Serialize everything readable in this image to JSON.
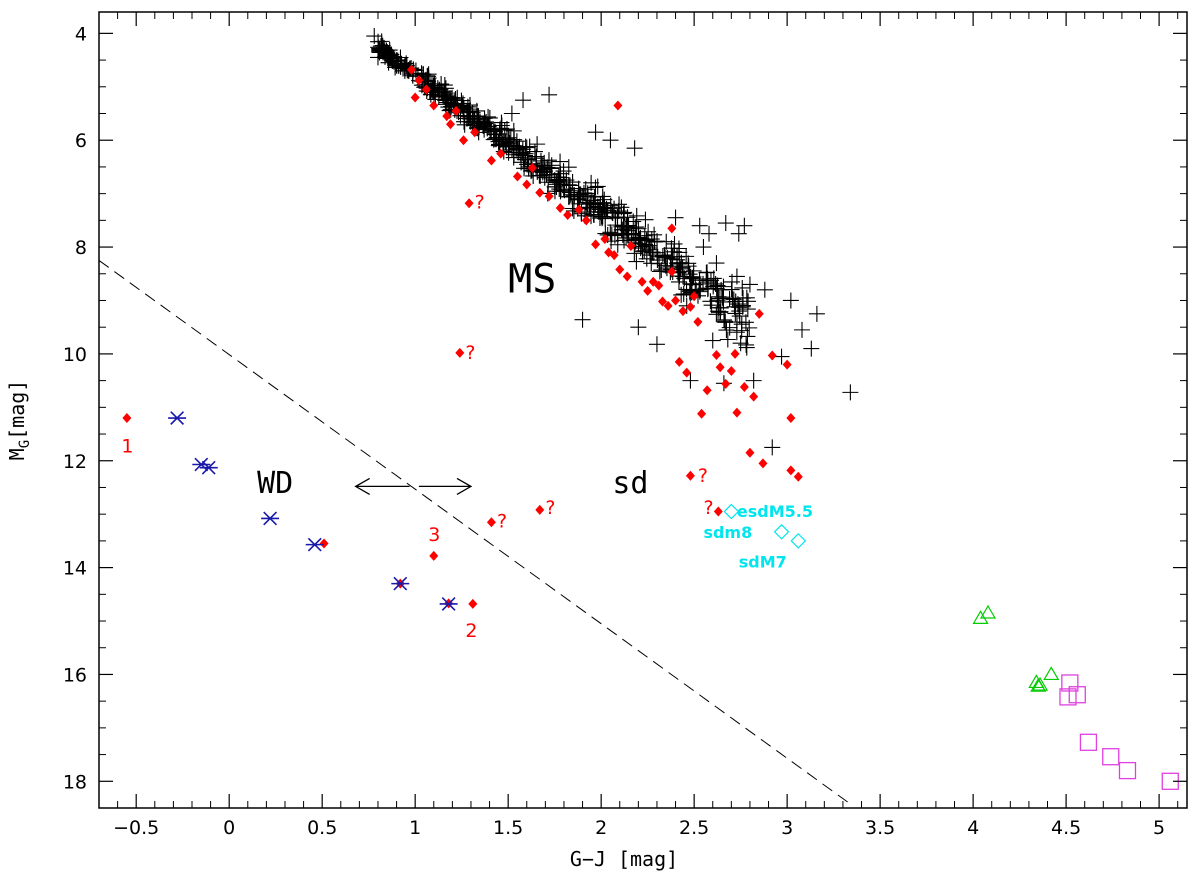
{
  "chart_data": {
    "type": "scatter",
    "title": "",
    "xlabel": "G−J [mag]",
    "ylabel_main": "M",
    "ylabel_sub": "G",
    "ylabel_unit": "[mag]",
    "xlim": [
      -0.7,
      5.15
    ],
    "ylim": [
      18.5,
      3.6
    ],
    "y_inverted": true,
    "grid": false,
    "x_ticks": [
      -0.5,
      0,
      0.5,
      1,
      1.5,
      2,
      2.5,
      3,
      3.5,
      4,
      4.5,
      5
    ],
    "x_tick_labels": [
      "−0.5",
      "0",
      "0.5",
      "1",
      "1.5",
      "2",
      "2.5",
      "3",
      "3.5",
      "4",
      "4.5",
      "5"
    ],
    "y_ticks": [
      4,
      6,
      8,
      10,
      12,
      14,
      16,
      18
    ],
    "y_tick_labels": [
      "4",
      "6",
      "8",
      "10",
      "12",
      "14",
      "16",
      "18"
    ],
    "colors": {
      "ms": "#000000",
      "red": "#ff0000",
      "wd": "#1a1aaa",
      "cyan": "#00e5ee",
      "green": "#00cc00",
      "magenta": "#e040e0"
    },
    "divider_line": {
      "x": [
        -0.7,
        3.33
      ],
      "y": [
        8.25,
        18.4
      ],
      "style": "dashed"
    },
    "arrows": {
      "y": 12.48,
      "left": [
        0.68,
        0.97
      ],
      "right": [
        1.02,
        1.3
      ]
    },
    "series": [
      {
        "marker": "plus",
        "color": "#000000",
        "ms_band_generated": {
          "x_start": 0.8,
          "x_end": 2.8,
          "count": 600,
          "slope": 2.58,
          "intercept": 2.2,
          "seed": 7
        },
        "points": [
          [
            0.78,
            4.05
          ],
          [
            0.82,
            4.15
          ],
          [
            0.85,
            4.35
          ],
          [
            0.8,
            4.45
          ],
          [
            2.05,
            6.0
          ],
          [
            2.18,
            6.15
          ],
          [
            1.97,
            5.85
          ],
          [
            1.58,
            5.25
          ],
          [
            1.72,
            5.15
          ],
          [
            1.52,
            5.5
          ],
          [
            2.4,
            7.45
          ],
          [
            2.53,
            7.6
          ],
          [
            2.58,
            7.75
          ],
          [
            2.67,
            7.55
          ],
          [
            2.74,
            7.75
          ],
          [
            2.77,
            7.6
          ],
          [
            2.73,
            8.55
          ],
          [
            2.8,
            8.7
          ],
          [
            2.88,
            8.8
          ],
          [
            3.02,
            9.0
          ],
          [
            3.08,
            9.55
          ],
          [
            3.16,
            9.25
          ],
          [
            3.13,
            9.9
          ],
          [
            2.97,
            10.05
          ],
          [
            2.82,
            10.5
          ],
          [
            2.66,
            10.55
          ],
          [
            2.92,
            11.75
          ],
          [
            3.34,
            10.72
          ],
          [
            1.9,
            9.36
          ],
          [
            2.2,
            9.5
          ],
          [
            2.3,
            9.82
          ],
          [
            2.48,
            10.5
          ],
          [
            2.6,
            9.75
          ],
          [
            2.75,
            9.8
          ],
          [
            2.55,
            8.0
          ],
          [
            2.62,
            8.3
          ],
          [
            2.35,
            7.9
          ],
          [
            2.42,
            8.1
          ],
          [
            2.46,
            9.1
          ]
        ]
      },
      {
        "marker": "diamond-filled",
        "color": "#ff0000",
        "points": [
          [
            -0.55,
            11.2
          ],
          [
            0.51,
            13.55
          ],
          [
            0.92,
            14.3
          ],
          [
            1.18,
            14.67
          ],
          [
            1.1,
            13.78
          ],
          [
            1.31,
            14.68
          ],
          [
            1.41,
            13.15
          ],
          [
            1.67,
            12.92
          ],
          [
            1.29,
            7.18
          ],
          [
            1.24,
            9.98
          ],
          [
            2.09,
            5.35
          ],
          [
            2.48,
            12.28
          ],
          [
            2.63,
            12.95
          ],
          [
            0.98,
            4.68
          ],
          [
            1.02,
            4.88
          ],
          [
            1.06,
            5.05
          ],
          [
            1.0,
            5.2
          ],
          [
            1.1,
            5.35
          ],
          [
            1.17,
            5.55
          ],
          [
            1.19,
            5.7
          ],
          [
            1.22,
            5.45
          ],
          [
            1.26,
            6.0
          ],
          [
            1.32,
            5.85
          ],
          [
            1.41,
            6.38
          ],
          [
            1.46,
            6.25
          ],
          [
            1.55,
            6.68
          ],
          [
            1.6,
            6.83
          ],
          [
            1.63,
            6.52
          ],
          [
            1.67,
            6.98
          ],
          [
            1.72,
            7.05
          ],
          [
            1.78,
            7.27
          ],
          [
            1.82,
            7.4
          ],
          [
            1.88,
            7.3
          ],
          [
            1.92,
            7.5
          ],
          [
            1.97,
            7.95
          ],
          [
            2.02,
            7.85
          ],
          [
            2.04,
            8.1
          ],
          [
            2.07,
            8.15
          ],
          [
            2.1,
            8.42
          ],
          [
            2.14,
            8.55
          ],
          [
            2.16,
            7.98
          ],
          [
            2.22,
            8.65
          ],
          [
            2.25,
            8.82
          ],
          [
            2.28,
            8.65
          ],
          [
            2.31,
            8.72
          ],
          [
            2.33,
            9.02
          ],
          [
            2.36,
            9.1
          ],
          [
            2.38,
            7.65
          ],
          [
            2.38,
            8.46
          ],
          [
            2.4,
            9.0
          ],
          [
            2.42,
            10.15
          ],
          [
            2.44,
            9.2
          ],
          [
            2.46,
            10.35
          ],
          [
            2.48,
            9.12
          ],
          [
            2.5,
            8.92
          ],
          [
            2.52,
            9.4
          ],
          [
            2.54,
            11.12
          ],
          [
            2.57,
            10.68
          ],
          [
            2.62,
            10.02
          ],
          [
            2.64,
            10.25
          ],
          [
            2.67,
            10.56
          ],
          [
            2.7,
            10.32
          ],
          [
            2.72,
            10.0
          ],
          [
            2.73,
            11.1
          ],
          [
            2.77,
            10.62
          ],
          [
            2.8,
            11.85
          ],
          [
            2.82,
            10.8
          ],
          [
            2.85,
            9.25
          ],
          [
            2.87,
            12.05
          ],
          [
            2.92,
            10.03
          ],
          [
            3.0,
            10.2
          ],
          [
            3.02,
            11.2
          ],
          [
            3.02,
            12.18
          ],
          [
            3.06,
            12.3
          ]
        ]
      },
      {
        "marker": "asterisk",
        "color": "#1a1aaa",
        "points": [
          [
            -0.28,
            11.2
          ],
          [
            -0.15,
            12.07
          ],
          [
            -0.11,
            12.13
          ],
          [
            0.22,
            13.08
          ],
          [
            0.46,
            13.57
          ],
          [
            0.92,
            14.3
          ],
          [
            1.18,
            14.68
          ]
        ]
      },
      {
        "marker": "diamond-open",
        "color": "#00e5ee",
        "points": [
          [
            2.7,
            12.95
          ],
          [
            2.97,
            13.33
          ],
          [
            3.06,
            13.5
          ]
        ]
      },
      {
        "marker": "triangle-open",
        "color": "#00cc00",
        "points": [
          [
            4.04,
            14.95
          ],
          [
            4.08,
            14.85
          ],
          [
            4.34,
            16.15
          ],
          [
            4.35,
            16.22
          ],
          [
            4.36,
            16.2
          ],
          [
            4.42,
            16.0
          ]
        ]
      },
      {
        "marker": "square-open",
        "color": "#e040e0",
        "points": [
          [
            4.52,
            16.16
          ],
          [
            4.51,
            16.42
          ],
          [
            4.56,
            16.38
          ],
          [
            4.62,
            17.27
          ],
          [
            4.74,
            17.54
          ],
          [
            4.83,
            17.8
          ],
          [
            5.06,
            18.0
          ]
        ]
      }
    ],
    "annotations": [
      {
        "text": "MS",
        "x": 1.5,
        "y": 8.85,
        "style": "big"
      },
      {
        "text": "WD",
        "x": 0.15,
        "y": 12.6,
        "style": "mid"
      },
      {
        "text": "sd",
        "x": 2.06,
        "y": 12.6,
        "style": "mid"
      },
      {
        "text": "1",
        "x": -0.58,
        "y": 11.85,
        "style": "red"
      },
      {
        "text": "2",
        "x": 1.27,
        "y": 15.3,
        "style": "red"
      },
      {
        "text": "3",
        "x": 1.07,
        "y": 13.5,
        "style": "red"
      },
      {
        "text": "?",
        "x": 1.32,
        "y": 7.28,
        "style": "red"
      },
      {
        "text": "?",
        "x": 1.27,
        "y": 10.1,
        "style": "red"
      },
      {
        "text": "?",
        "x": 1.44,
        "y": 13.25,
        "style": "red"
      },
      {
        "text": "?",
        "x": 1.7,
        "y": 13.0,
        "style": "red"
      },
      {
        "text": "?",
        "x": 2.52,
        "y": 12.4,
        "style": "red"
      },
      {
        "text": "?",
        "x": 2.55,
        "y": 13.0,
        "style": "red"
      },
      {
        "text": "esdM5.5",
        "x": 2.73,
        "y": 13.05,
        "style": "cyan"
      },
      {
        "text": "sdm8",
        "x": 2.55,
        "y": 13.45,
        "style": "cyan"
      },
      {
        "text": "sdM7",
        "x": 2.74,
        "y": 14.0,
        "style": "cyan"
      }
    ]
  }
}
